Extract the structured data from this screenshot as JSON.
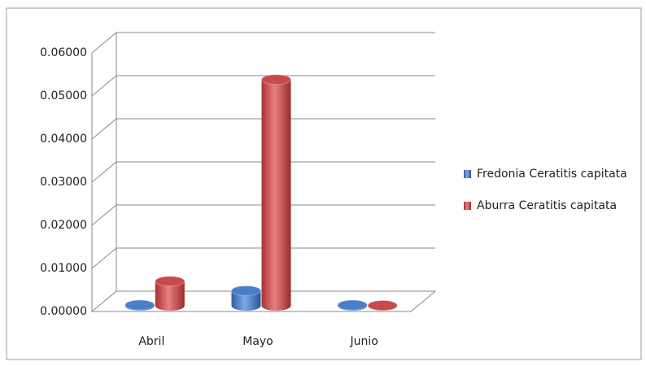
{
  "chart_data": {
    "type": "bar3d",
    "categories": [
      "Abril",
      "Mayo",
      "Junio"
    ],
    "series": [
      {
        "name": "Fredonia Ceratitis capitata",
        "color": "#4a7ec8",
        "values": [
          0.0002,
          0.0035,
          0.0002
        ]
      },
      {
        "name": "Aburra Ceratitis capitata",
        "color": "#c84a4a",
        "values": [
          0.0057,
          0.0525,
          0.0001
        ]
      }
    ],
    "ylim": [
      0,
      0.06
    ],
    "yticks": [
      {
        "value": 0,
        "label": "0.00000"
      },
      {
        "value": 0.01,
        "label": "0.01000"
      },
      {
        "value": 0.02,
        "label": "0.02000"
      },
      {
        "value": 0.03,
        "label": "0.03000"
      },
      {
        "value": 0.04,
        "label": "0.04000"
      },
      {
        "value": 0.05,
        "label": "0.05000"
      },
      {
        "value": 0.06,
        "label": "0.06000"
      }
    ],
    "grid": true,
    "legend": "right"
  }
}
